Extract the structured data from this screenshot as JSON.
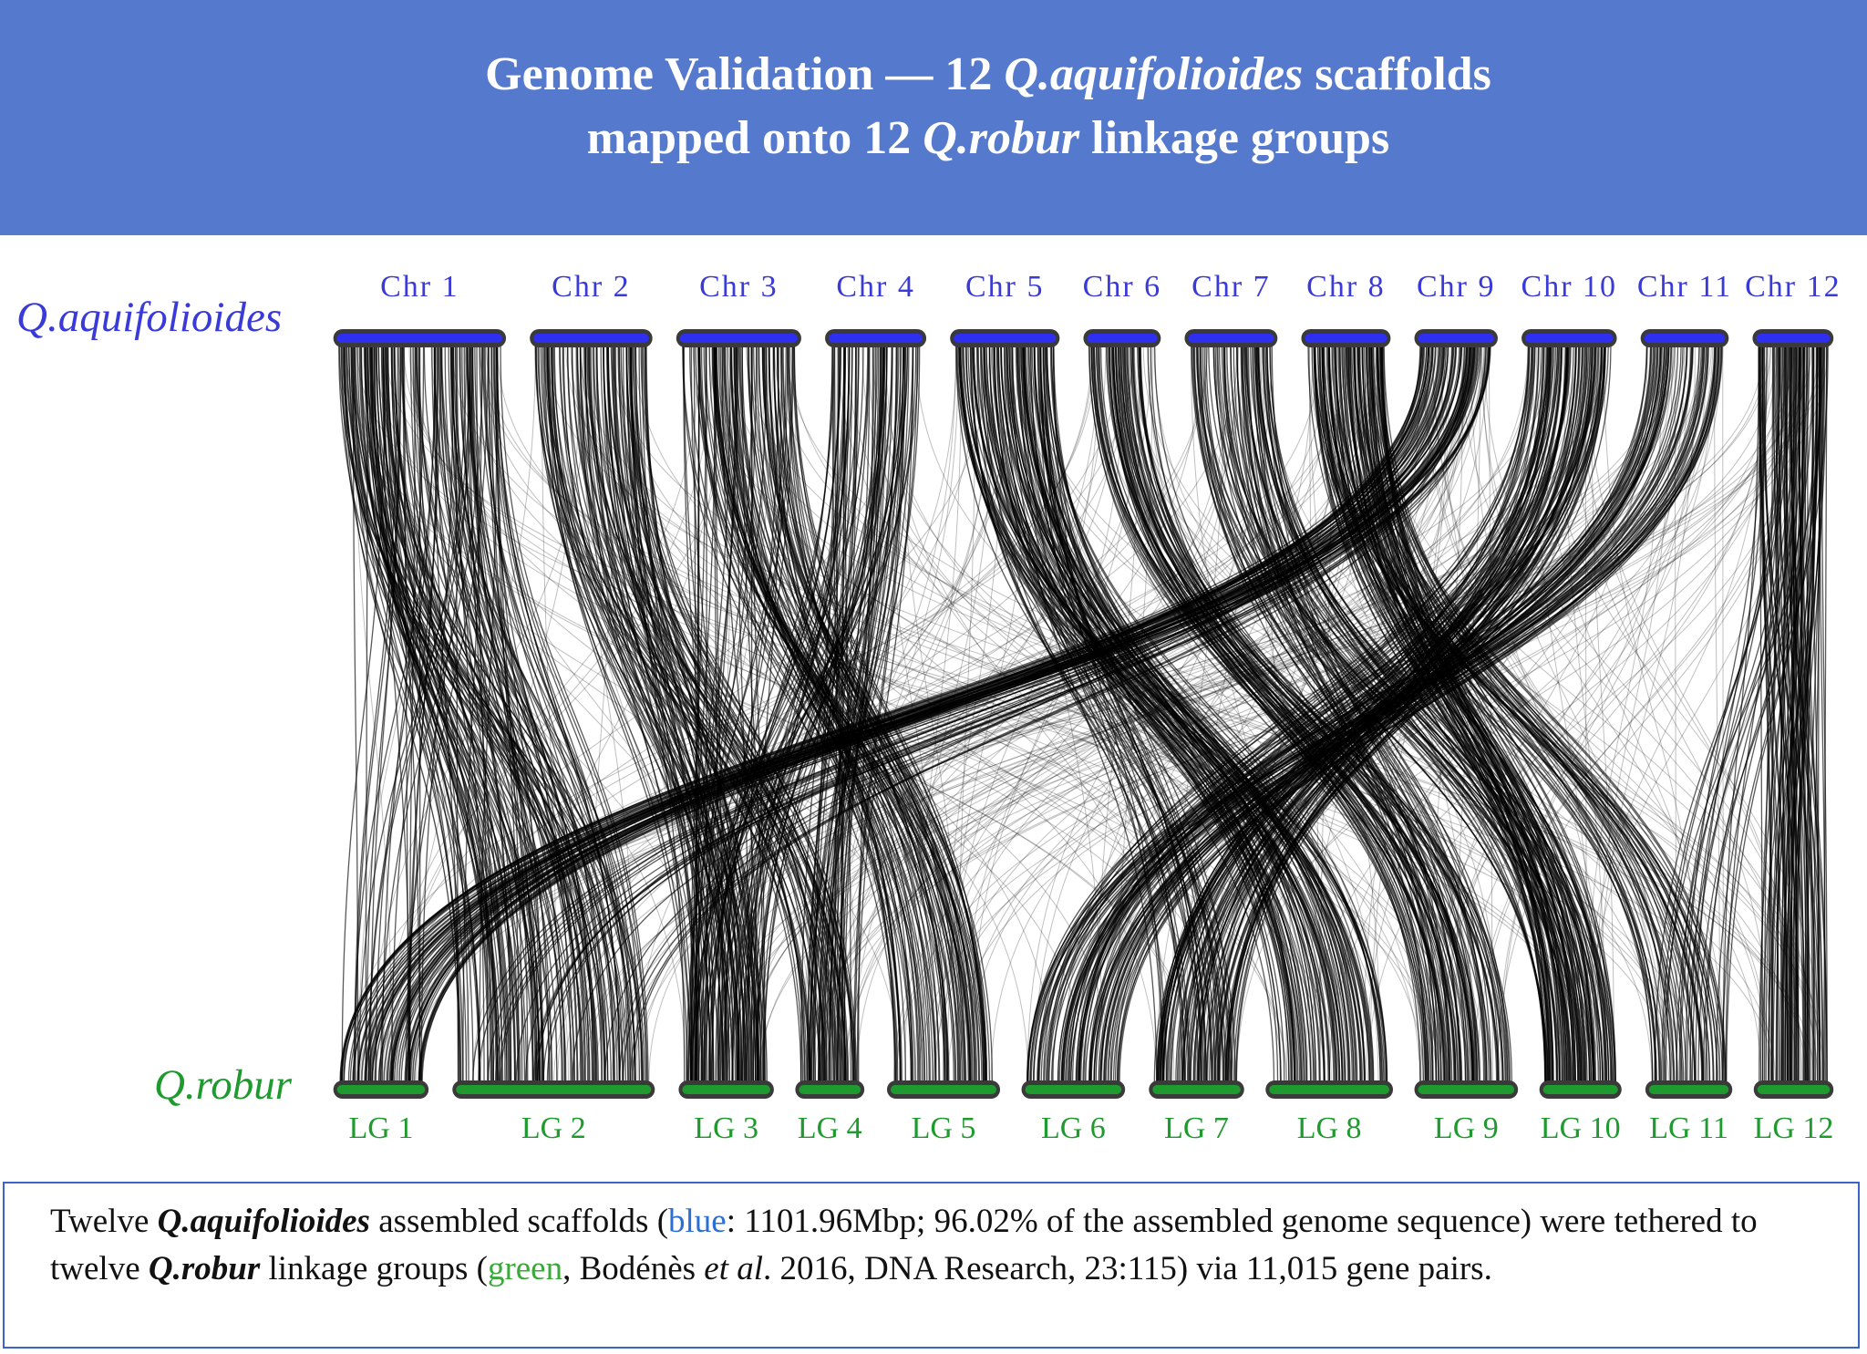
{
  "header": {
    "title": {
      "line1": [
        "Genome Validation — 12 ",
        "Q.aquifolioides",
        " scaffolds"
      ],
      "line2": [
        "mapped onto 12 ",
        "Q.robur",
        " linkage groups"
      ]
    }
  },
  "diagram": {
    "top_species": "Q.aquifolioides",
    "bottom_species": "Q.robur",
    "top_labels": [
      "Chr 1",
      "Chr 2",
      "Chr 3",
      "Chr 4",
      "Chr 5",
      "Chr 6",
      "Chr 7",
      "Chr 8",
      "Chr 9",
      "Chr 10",
      "Chr 11",
      "Chr 12"
    ],
    "bottom_labels": [
      "LG 1",
      "LG 2",
      "LG 3",
      "LG 4",
      "LG 5",
      "LG 6",
      "LG 7",
      "LG 8",
      "LG 9",
      "LG 10",
      "LG 11",
      "LG 12"
    ]
  },
  "caption": [
    "Twelve ",
    "Q.aquifolioides",
    " assembled scaffolds (",
    "blue",
    ": 1101.96Mbp; 96.02% of the assembled genome sequence) were tethered to twelve ",
    "Q.robur",
    " linkage groups (",
    "green",
    ", Bodénès ",
    "et al",
    ". 2016, DNA Research, 23:115) via 11,015 gene pairs."
  ]
}
